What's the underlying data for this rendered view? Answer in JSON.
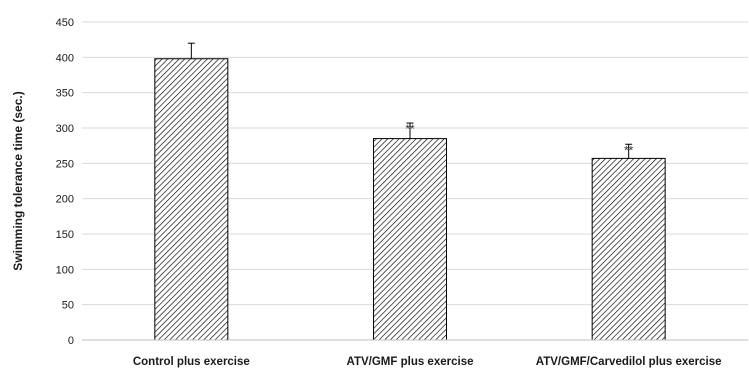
{
  "chart_data": {
    "type": "bar",
    "title": "",
    "xlabel": "",
    "ylabel": "Swimming tolerance time (sec.)",
    "categories": [
      "Control plus exercise",
      "ATV/GMF plus exercise",
      "ATV/GMF/Carvedilol plus exercise"
    ],
    "values": [
      398,
      285,
      257
    ],
    "errors": [
      22,
      22,
      20
    ],
    "annotations": [
      "",
      "**",
      "**"
    ],
    "ylim": [
      0,
      450
    ],
    "yticks": [
      0,
      50,
      100,
      150,
      200,
      250,
      300,
      350,
      400,
      450
    ],
    "grid": true,
    "legend": "none",
    "bar_pattern": "diagonal-hatch",
    "colors": {
      "bar_fill": "#ffffff",
      "bar_hatch": "#000000",
      "bar_edge": "#000000",
      "gridline": "#d9d9d9",
      "axis": "#bfbfbf",
      "text": "#1a1a1a"
    }
  }
}
